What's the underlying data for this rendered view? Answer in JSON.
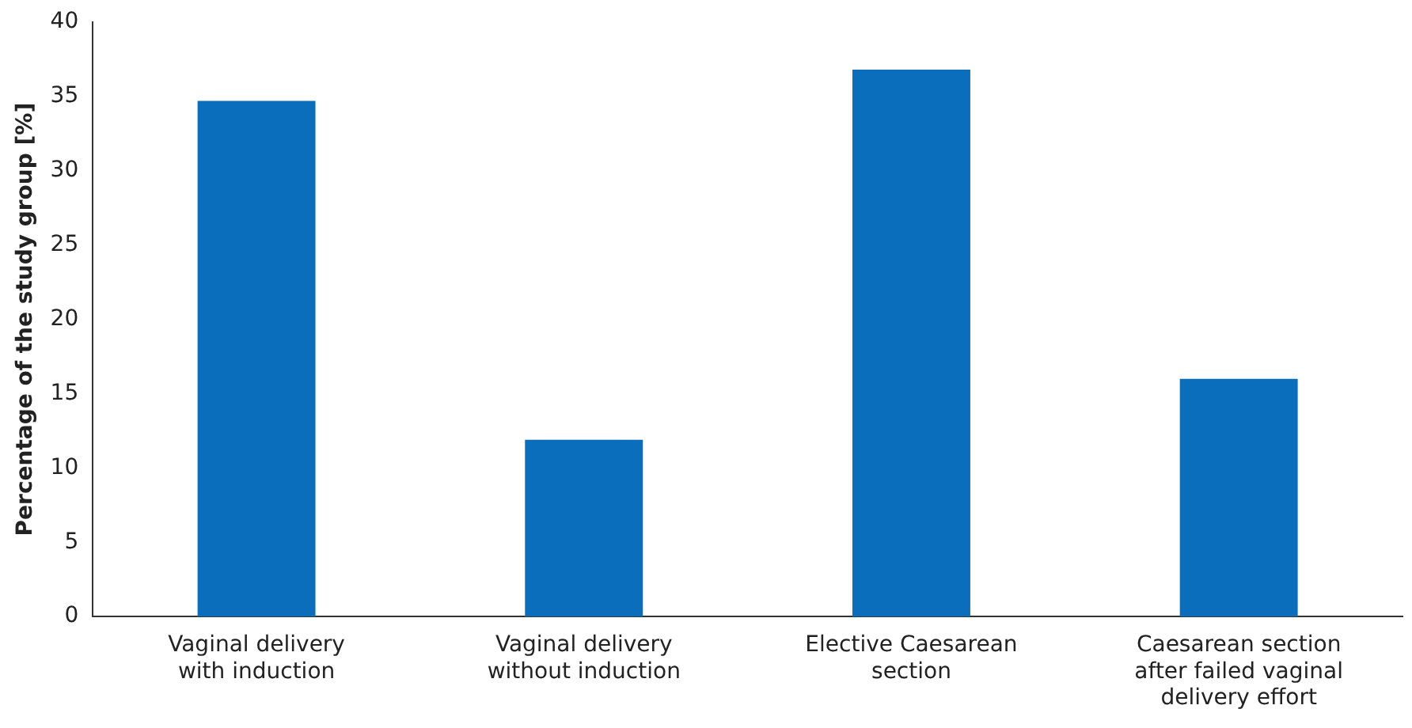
{
  "chart_data": {
    "type": "bar",
    "ylabel": "Percentage of the study group [%]",
    "categories": [
      "Vaginal delivery\nwith induction",
      "Vaginal delivery\nwithout induction",
      "Elective Caesarean\nsection",
      "Caesarean section\nafter failed vaginal\ndelivery effort"
    ],
    "values": [
      34.7,
      11.9,
      36.8,
      16
    ],
    "color": "#0a6ebd",
    "ylim": [
      0,
      40
    ],
    "yticks": [
      0,
      5,
      10,
      15,
      20,
      25,
      30,
      35,
      40
    ],
    "grid": false,
    "legend": false
  }
}
